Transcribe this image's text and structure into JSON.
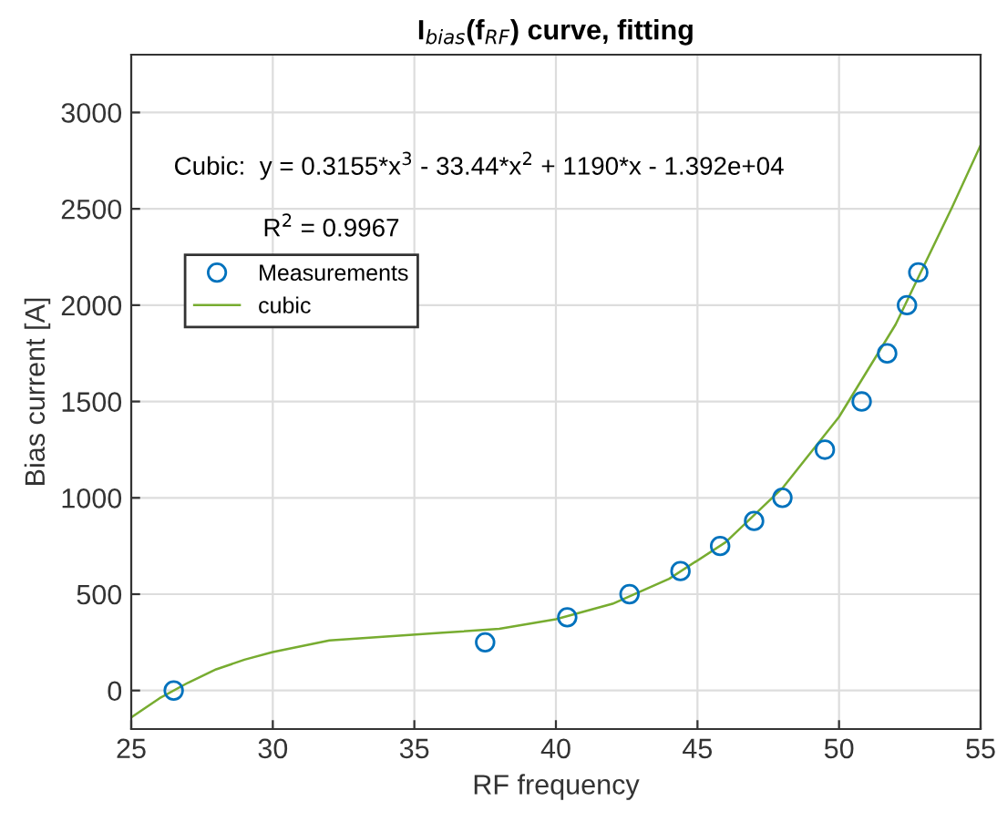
{
  "chart_data": {
    "type": "scatter",
    "title": "I$_{bias}$(f$_{RF}$) curve, fitting",
    "xlabel": "RF frequency",
    "ylabel": "Bias current [A]",
    "annotations": [
      "Cubic:  y = 0.3155*x$^{3}$ - 33.44*x$^{2}$ + 1190*x - 1.392e+04",
      "R$^{2}$ = 0.9967"
    ],
    "series": [
      {
        "name": "Measurements",
        "marker": "circle",
        "color": "#0072bd",
        "x": [
          26.5,
          37.5,
          40.4,
          42.6,
          44.4,
          45.8,
          47,
          48,
          49.5,
          50.8,
          51.7,
          52.4,
          52.8
        ],
        "values": [
          0,
          250,
          380,
          500,
          620,
          750,
          880,
          1000,
          1250,
          1500,
          1750,
          2000,
          2170
        ]
      },
      {
        "name": "cubic",
        "type": "line",
        "color": "#77ac30",
        "x": [
          25,
          26,
          27,
          28,
          29,
          30,
          32,
          34,
          36,
          38,
          40,
          42,
          44,
          46,
          48,
          50,
          52,
          54,
          55
        ],
        "values": [
          -140,
          -40,
          40,
          110,
          160,
          200,
          260,
          280,
          300,
          320,
          370,
          450,
          580,
          770,
          1050,
          1420,
          1900,
          2510,
          2830
        ]
      }
    ],
    "xlim": [
      25,
      55
    ],
    "xticks": [
      25,
      30,
      35,
      40,
      45,
      50,
      55
    ],
    "ylim": [
      -200,
      3300
    ],
    "yticks": [
      0,
      500,
      1000,
      1500,
      2000,
      2500,
      3000
    ],
    "grid": true,
    "legend": "top left"
  }
}
